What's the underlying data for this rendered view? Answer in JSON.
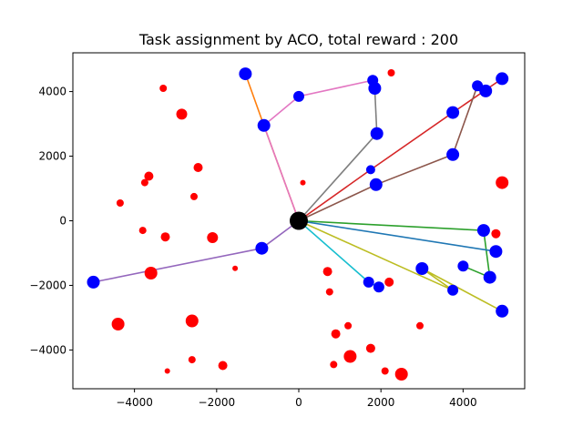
{
  "chart_data": {
    "type": "scatter",
    "title": "Task assignment by ACO, total reward : 200",
    "xlabel": "",
    "ylabel": "",
    "xlim": [
      -5500,
      5500
    ],
    "ylim": [
      -5200,
      5200
    ],
    "xticks": [
      -4000,
      -2000,
      0,
      2000,
      4000
    ],
    "yticks": [
      -4000,
      -2000,
      0,
      2000,
      4000
    ],
    "grid": false,
    "depot": {
      "x": 0,
      "y": 0,
      "color": "#000000"
    },
    "colors": {
      "assigned": "#0000ff",
      "unassigned": "#ff0000",
      "depot": "#000000"
    },
    "assigned_tasks": [
      {
        "x": -1300,
        "y": 4550,
        "size": 7
      },
      {
        "x": -850,
        "y": 2950,
        "size": 7
      },
      {
        "x": 0,
        "y": 3850,
        "size": 6
      },
      {
        "x": 1800,
        "y": 4350,
        "size": 6
      },
      {
        "x": 1850,
        "y": 4100,
        "size": 7
      },
      {
        "x": 1900,
        "y": 2700,
        "size": 7
      },
      {
        "x": 1750,
        "y": 1580,
        "size": 5
      },
      {
        "x": 1880,
        "y": 1120,
        "size": 7
      },
      {
        "x": 3750,
        "y": 3350,
        "size": 7
      },
      {
        "x": 3750,
        "y": 2050,
        "size": 7
      },
      {
        "x": 4350,
        "y": 4180,
        "size": 6
      },
      {
        "x": 4550,
        "y": 4020,
        "size": 7
      },
      {
        "x": 4950,
        "y": 4400,
        "size": 7
      },
      {
        "x": -5000,
        "y": -1900,
        "size": 7
      },
      {
        "x": -900,
        "y": -850,
        "size": 7
      },
      {
        "x": 4500,
        "y": -300,
        "size": 7
      },
      {
        "x": 4800,
        "y": -950,
        "size": 7
      },
      {
        "x": 4650,
        "y": -1750,
        "size": 7
      },
      {
        "x": 4000,
        "y": -1400,
        "size": 6
      },
      {
        "x": 3000,
        "y": -1480,
        "size": 7
      },
      {
        "x": 3750,
        "y": -2150,
        "size": 6
      },
      {
        "x": 4950,
        "y": -2800,
        "size": 7
      },
      {
        "x": 1700,
        "y": -1900,
        "size": 6
      },
      {
        "x": 1950,
        "y": -2050,
        "size": 6
      }
    ],
    "unassigned_tasks": [
      {
        "x": -3300,
        "y": 4100,
        "size": 4
      },
      {
        "x": -2850,
        "y": 3300,
        "size": 6
      },
      {
        "x": 2250,
        "y": 4580,
        "size": 4
      },
      {
        "x": -2450,
        "y": 1650,
        "size": 5
      },
      {
        "x": -3650,
        "y": 1380,
        "size": 5
      },
      {
        "x": -3750,
        "y": 1180,
        "size": 4
      },
      {
        "x": -2550,
        "y": 750,
        "size": 4
      },
      {
        "x": -4350,
        "y": 550,
        "size": 4
      },
      {
        "x": 100,
        "y": 1180,
        "size": 3
      },
      {
        "x": 4950,
        "y": 1180,
        "size": 7
      },
      {
        "x": -3800,
        "y": -300,
        "size": 4
      },
      {
        "x": -3250,
        "y": -500,
        "size": 5
      },
      {
        "x": -2100,
        "y": -520,
        "size": 6
      },
      {
        "x": 4800,
        "y": -400,
        "size": 5
      },
      {
        "x": -1550,
        "y": -1470,
        "size": 3
      },
      {
        "x": -3600,
        "y": -1620,
        "size": 7
      },
      {
        "x": 700,
        "y": -1570,
        "size": 5
      },
      {
        "x": 2200,
        "y": -1900,
        "size": 5
      },
      {
        "x": 750,
        "y": -2200,
        "size": 4
      },
      {
        "x": -4400,
        "y": -3200,
        "size": 7
      },
      {
        "x": -2600,
        "y": -3100,
        "size": 7
      },
      {
        "x": 1200,
        "y": -3250,
        "size": 4
      },
      {
        "x": 2950,
        "y": -3250,
        "size": 4
      },
      {
        "x": 900,
        "y": -3500,
        "size": 5
      },
      {
        "x": 1750,
        "y": -3950,
        "size": 5
      },
      {
        "x": 1250,
        "y": -4200,
        "size": 7
      },
      {
        "x": -2600,
        "y": -4300,
        "size": 4
      },
      {
        "x": 850,
        "y": -4450,
        "size": 4
      },
      {
        "x": -1850,
        "y": -4480,
        "size": 5
      },
      {
        "x": -3200,
        "y": -4650,
        "size": 3
      },
      {
        "x": 2100,
        "y": -4650,
        "size": 4
      },
      {
        "x": 2500,
        "y": -4750,
        "size": 7
      }
    ],
    "routes": [
      {
        "color": "#ff7f0e",
        "points": [
          [
            0,
            0
          ],
          [
            -850,
            2950
          ],
          [
            -1300,
            4550
          ]
        ]
      },
      {
        "color": "#e377c2",
        "points": [
          [
            0,
            0
          ],
          [
            -850,
            2950
          ],
          [
            0,
            3850
          ],
          [
            1800,
            4350
          ],
          [
            1850,
            4100
          ]
        ]
      },
      {
        "color": "#7f7f7f",
        "points": [
          [
            0,
            0
          ],
          [
            1900,
            2700
          ],
          [
            1850,
            4100
          ]
        ]
      },
      {
        "color": "#d62728",
        "points": [
          [
            0,
            0
          ],
          [
            1750,
            1580
          ],
          [
            3750,
            3350
          ],
          [
            4950,
            4400
          ]
        ]
      },
      {
        "color": "#8c564b",
        "points": [
          [
            0,
            0
          ],
          [
            1880,
            1120
          ],
          [
            3750,
            2050
          ],
          [
            4350,
            4180
          ]
        ]
      },
      {
        "color": "#9467bd",
        "points": [
          [
            0,
            0
          ],
          [
            -900,
            -850
          ],
          [
            -5000,
            -1900
          ]
        ]
      },
      {
        "color": "#2ca02c",
        "points": [
          [
            0,
            0
          ],
          [
            4500,
            -300
          ],
          [
            4650,
            -1750
          ],
          [
            4000,
            -1400
          ]
        ]
      },
      {
        "color": "#1f77b4",
        "points": [
          [
            0,
            0
          ],
          [
            4800,
            -950
          ]
        ]
      },
      {
        "color": "#bcbd22",
        "points": [
          [
            0,
            0
          ],
          [
            3750,
            -2150
          ],
          [
            3000,
            -1480
          ],
          [
            4950,
            -2800
          ]
        ]
      },
      {
        "color": "#17becf",
        "points": [
          [
            0,
            0
          ],
          [
            1700,
            -1900
          ],
          [
            1950,
            -2050
          ]
        ]
      }
    ]
  }
}
